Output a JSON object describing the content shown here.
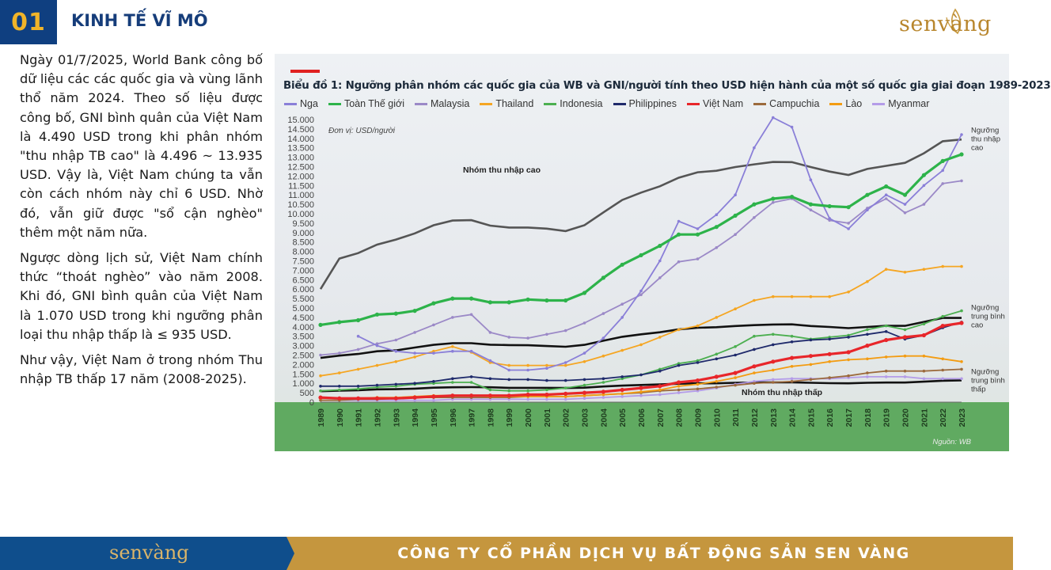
{
  "header": {
    "section_number": "01",
    "section_title": "KINH TẾ VĨ MÔ",
    "brand": "senvàng"
  },
  "body": {
    "paragraphs": [
      "Ngày 01/7/2025, World Bank công bố dữ liệu các các quốc gia và vùng lãnh thổ năm 2024. Theo số liệu được công bố, GNI bình quân của Việt Nam là 4.490 USD trong khi phân nhóm \"thu nhập TB cao\" là 4.496 ~ 13.935 USD. Vậy là, Việt Nam chúng ta vẫn còn cách nhóm này chỉ 6 USD. Nhờ đó, vẫn giữ được \"sổ cận nghèo\" thêm một năm nữa.",
      "Ngược dòng lịch sử, Việt Nam chính thức “thoát nghèo” vào năm 2008. Khi đó, GNI bình quân của Việt Nam là 1.070 USD trong khi ngưỡng phân loại thu nhập thấp là ≤ 935 USD.",
      "Như vậy, Việt Nam ở trong nhóm Thu nhập TB thấp 17 năm (2008-2025)."
    ]
  },
  "chart_data": {
    "type": "line",
    "title": "Biểu đồ 1: Ngưỡng phân nhóm các quốc gia của WB và GNI/người tính theo USD hiện hành của một số quốc gia giai đoạn 1989-2023",
    "unit_label": "Đơn vị: USD/người",
    "source": "Nguồn: WB",
    "x": [
      1989,
      1990,
      1991,
      1992,
      1993,
      1994,
      1995,
      1996,
      1997,
      1998,
      1999,
      2000,
      2001,
      2002,
      2003,
      2004,
      2005,
      2006,
      2007,
      2008,
      2009,
      2010,
      2011,
      2012,
      2013,
      2014,
      2015,
      2016,
      2017,
      2018,
      2019,
      2020,
      2021,
      2022,
      2023
    ],
    "ylim": [
      0,
      15000
    ],
    "yticks": [
      0,
      500,
      1000,
      1500,
      2000,
      2500,
      3000,
      3500,
      4000,
      4500,
      5000,
      5500,
      6000,
      6500,
      7000,
      7500,
      8000,
      8500,
      9000,
      9500,
      10000,
      10500,
      11000,
      11500,
      12000,
      12500,
      13000,
      13500,
      14000,
      14500,
      15000
    ],
    "ytick_labels": [
      "0",
      "500",
      "1.000",
      "1.500",
      "2.000",
      "2.500",
      "3.000",
      "3.500",
      "4.000",
      "4.500",
      "5.000",
      "5.500",
      "6.000",
      "6.500",
      "7.000",
      "7.500",
      "8.000",
      "8.500",
      "9.000",
      "9.500",
      "10.000",
      "10.500",
      "11.000",
      "11.500",
      "12.000",
      "12.500",
      "13.000",
      "13.500",
      "14.000",
      "14.500",
      "15.000"
    ],
    "grid": false,
    "legend_position": "top",
    "thresholds": [
      {
        "values": [
          6000,
          7620,
          7910,
          8360,
          8630,
          8960,
          9390,
          9640,
          9660,
          9370,
          9270,
          9270,
          9210,
          9080,
          9390,
          10070,
          10730,
          11120,
          11460,
          11910,
          12200,
          12280,
          12480,
          12620,
          12750,
          12740,
          12480,
          12240,
          12060,
          12380,
          12540,
          12700,
          13210,
          13850,
          13940
        ],
        "color": "#555555"
      },
      {
        "values": [
          2350,
          2470,
          2560,
          2700,
          2750,
          2900,
          3040,
          3130,
          3130,
          3050,
          3030,
          3020,
          2980,
          2940,
          3040,
          3260,
          3470,
          3600,
          3710,
          3860,
          3950,
          3980,
          4040,
          4090,
          4120,
          4130,
          4040,
          3990,
          3930,
          3990,
          4050,
          4050,
          4260,
          4470,
          4470
        ],
        "color": "#111111"
      },
      {
        "values": [
          580,
          610,
          630,
          680,
          690,
          720,
          770,
          790,
          800,
          790,
          760,
          760,
          760,
          750,
          770,
          830,
          880,
          910,
          940,
          980,
          1000,
          1000,
          1030,
          1040,
          1050,
          1050,
          1030,
          1010,
          1000,
          1030,
          1040,
          1040,
          1090,
          1140,
          1160
        ],
        "color": "#111111"
      }
    ],
    "annotations": [
      "Nhóm thu nhập cao",
      "Nhóm thu nhập thấp"
    ],
    "side_labels": [
      "Ngưỡng thu nhập cao",
      "Ngưỡng trung bình cao",
      "Ngưỡng trung bình thấp"
    ],
    "series": [
      {
        "name": "Nga",
        "color": "#8a7fd8",
        "values": [
          null,
          null,
          3500,
          3000,
          2700,
          2600,
          2600,
          2700,
          2700,
          2200,
          1700,
          1700,
          1800,
          2100,
          2600,
          3400,
          4500,
          5900,
          7500,
          9600,
          9200,
          9950,
          11000,
          13500,
          15100,
          14600,
          11800,
          9750,
          9200,
          10200,
          11000,
          10500,
          11500,
          12300,
          14200
        ]
      },
      {
        "name": "Toàn Thế giới",
        "color": "#2db34a",
        "values": [
          4100,
          4250,
          4350,
          4650,
          4700,
          4850,
          5250,
          5500,
          5500,
          5300,
          5300,
          5450,
          5400,
          5400,
          5800,
          6600,
          7300,
          7800,
          8300,
          8900,
          8900,
          9300,
          9900,
          10500,
          10800,
          10900,
          10500,
          10400,
          10350,
          11000,
          11450,
          11000,
          12050,
          12800,
          13150
        ]
      },
      {
        "name": "Malaysia",
        "color": "#9b89c7",
        "values": [
          2500,
          2600,
          2800,
          3100,
          3300,
          3700,
          4100,
          4500,
          4650,
          3700,
          3450,
          3400,
          3600,
          3800,
          4200,
          4700,
          5200,
          5700,
          6600,
          7450,
          7600,
          8200,
          8900,
          9800,
          10600,
          10800,
          10200,
          9650,
          9500,
          10300,
          10800,
          10050,
          10500,
          11600,
          11750
        ]
      },
      {
        "name": "Thailand",
        "color": "#f5a623",
        "values": [
          1400,
          1550,
          1750,
          1950,
          2150,
          2400,
          2700,
          2950,
          2650,
          2100,
          1950,
          1950,
          1950,
          1950,
          2150,
          2450,
          2750,
          3050,
          3450,
          3850,
          4050,
          4500,
          4950,
          5400,
          5600,
          5600,
          5600,
          5600,
          5850,
          6400,
          7050,
          6900,
          7050,
          7200,
          7200
        ]
      },
      {
        "name": "Indonesia",
        "color": "#4caf50",
        "values": [
          600,
          650,
          700,
          800,
          850,
          950,
          1000,
          1050,
          1050,
          650,
          600,
          600,
          650,
          750,
          900,
          1050,
          1250,
          1450,
          1750,
          2050,
          2200,
          2550,
          2950,
          3500,
          3600,
          3500,
          3350,
          3450,
          3550,
          3850,
          4050,
          3850,
          4150,
          4550,
          4850
        ]
      },
      {
        "name": "Philippines",
        "color": "#1f2a6b",
        "values": [
          850,
          850,
          850,
          900,
          950,
          1000,
          1100,
          1250,
          1350,
          1250,
          1200,
          1200,
          1150,
          1150,
          1200,
          1250,
          1350,
          1450,
          1650,
          1950,
          2100,
          2300,
          2500,
          2800,
          3050,
          3200,
          3300,
          3350,
          3450,
          3600,
          3750,
          3350,
          3550,
          3950,
          4250
        ]
      },
      {
        "name": "Việt Nam",
        "color": "#e8262a",
        "values": [
          250,
          200,
          200,
          200,
          200,
          250,
          300,
          350,
          350,
          350,
          350,
          400,
          400,
          450,
          500,
          550,
          650,
          750,
          850,
          1050,
          1150,
          1350,
          1550,
          1900,
          2150,
          2350,
          2450,
          2550,
          2650,
          3000,
          3300,
          3450,
          3550,
          4050,
          4200
        ]
      },
      {
        "name": "Campuchia",
        "color": "#9c6a3c",
        "values": [
          100,
          100,
          150,
          150,
          200,
          250,
          250,
          250,
          250,
          250,
          250,
          300,
          300,
          300,
          350,
          400,
          450,
          500,
          600,
          650,
          700,
          800,
          900,
          1000,
          1050,
          1100,
          1200,
          1300,
          1400,
          1550,
          1650,
          1650,
          1650,
          1700,
          1750
        ]
      },
      {
        "name": "Lào",
        "color": "#f39c12",
        "values": [
          200,
          200,
          200,
          250,
          250,
          300,
          350,
          350,
          350,
          300,
          300,
          300,
          300,
          300,
          350,
          400,
          450,
          550,
          650,
          850,
          950,
          1100,
          1300,
          1550,
          1700,
          1900,
          2000,
          2150,
          2250,
          2300,
          2400,
          2450,
          2450,
          2300,
          2150
        ]
      },
      {
        "name": "Myanmar",
        "color": "#b49ce8",
        "values": [
          100,
          100,
          100,
          100,
          100,
          100,
          100,
          150,
          150,
          150,
          150,
          150,
          150,
          150,
          200,
          250,
          300,
          350,
          400,
          500,
          600,
          750,
          950,
          1100,
          1200,
          1250,
          1250,
          1250,
          1300,
          1350,
          1350,
          1350,
          1250,
          1250,
          1250
        ]
      }
    ]
  },
  "footer": {
    "brand": "senvàng",
    "company": "CÔNG TY CỔ PHẦN DỊCH VỤ BẤT ĐỘNG SẢN SEN VÀNG"
  }
}
